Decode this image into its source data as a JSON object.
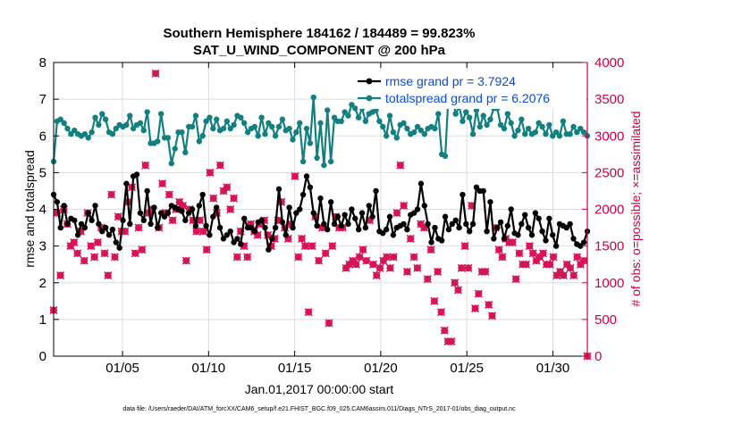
{
  "chart_data": {
    "type": "line",
    "title_line1": "Southern Hemisphere 184162 / 184489 = 99.823%",
    "title_line2": "SAT_U_WIND_COMPONENT @ 200 hPa",
    "xlabel": "Jan.01,2017 00:00:00 start",
    "ylabel_left": "rmse and totalspread",
    "ylabel_right": "# of obs: o=possible; ×=assimilated",
    "footnote": "data file: /Users/raeder/DAI/ATM_forcXX/CAM6_setup/f.e21.FHIST_BGC.f09_025.CAM6assim.011/Diags_NTrS_2017-01/obs_diag_output.nc",
    "xlim": [
      1,
      32
    ],
    "ylim_left": [
      0,
      8
    ],
    "ylim_right": [
      0,
      4000
    ],
    "x_tick_labels": [
      "01/05",
      "01/10",
      "01/15",
      "01/20",
      "01/25",
      "01/30"
    ],
    "x_tick_values": [
      5,
      10,
      15,
      20,
      25,
      30
    ],
    "y_tick_labels_left": [
      "0",
      "1",
      "2",
      "3",
      "4",
      "5",
      "6",
      "7",
      "8"
    ],
    "y_tick_labels_right": [
      "0",
      "500",
      "1000",
      "1500",
      "2000",
      "2500",
      "3000",
      "3500",
      "4000"
    ],
    "grid": true,
    "legend_position": "top-right",
    "colors": {
      "rmse": "#000000",
      "totalspread": "#128080",
      "obs": "#d6145a",
      "right_axis": "#c8004c",
      "legend_text": "#0a4bd9"
    },
    "series": [
      {
        "name": "rmse grand pr = 3.7924",
        "axis": "left",
        "values": [
          4.4,
          4.2,
          3.5,
          4.1,
          3.6,
          3.75,
          3.7,
          3.3,
          3.6,
          3.5,
          3.9,
          3.7,
          4.1,
          3.6,
          3.4,
          3.5,
          3.3,
          3.45,
          3.1,
          2.95,
          3.7,
          4.7,
          3.6,
          4.9,
          4.95,
          3.9,
          3.7,
          4.5,
          3.6,
          4.05,
          3.5,
          3.9,
          3.8,
          3.9,
          4.1,
          4.05,
          4.0,
          3.95,
          3.7,
          3.9,
          4.0,
          3.55,
          4.1,
          4.4,
          3.55,
          3.3,
          3.8,
          4.05,
          3.5,
          3.2,
          3.3,
          3.4,
          3.1,
          3.2,
          3.05,
          3.75,
          3.5,
          3.5,
          3.4,
          3.65,
          3.7,
          3.5,
          2.9,
          3.2,
          3.5,
          4.55,
          3.65,
          3.3,
          4.05,
          3.5,
          3.9,
          4.0,
          4.4,
          4.9,
          4.6,
          3.9,
          3.55,
          4.3,
          3.6,
          3.45,
          4.2,
          3.6,
          3.8,
          3.55,
          3.85,
          3.6,
          4.0,
          3.75,
          3.45,
          3.9,
          3.5,
          4.1,
          3.8,
          4.5,
          3.4,
          3.35,
          3.45,
          3.8,
          3.3,
          3.5,
          3.55,
          3.6,
          3.45,
          3.85,
          3.9,
          4.0,
          4.7,
          4.1,
          3.6,
          3.1,
          3.5,
          3.2,
          3.15,
          3.8,
          3.45,
          3.6,
          3.7,
          3.5,
          4.4,
          3.6,
          3.4,
          3.6,
          4.6,
          4.5,
          4.5,
          3.4,
          4.2,
          3.2,
          3.5,
          3.65,
          3.2,
          3.55,
          4.0,
          3.35,
          3.3,
          3.6,
          3.85,
          3.5,
          3.3,
          3.9,
          3.75,
          3.4,
          3.15,
          3.75,
          3.3,
          3.0,
          3.6,
          3.55,
          3.5,
          3.6,
          3.2,
          3.05,
          3.0,
          3.1,
          3.4
        ]
      },
      {
        "name": "totalspread grand pr = 6.2076",
        "axis": "left",
        "values": [
          5.3,
          6.4,
          6.45,
          6.35,
          6.2,
          6.05,
          6.15,
          6.05,
          6.0,
          6.05,
          5.95,
          6.1,
          6.5,
          6.3,
          6.6,
          6.45,
          6.1,
          6.05,
          6.2,
          6.3,
          6.25,
          6.3,
          6.55,
          6.2,
          6.3,
          6.35,
          6.15,
          6.65,
          5.8,
          5.8,
          5.85,
          6.6,
          5.95,
          5.95,
          5.25,
          5.65,
          6.1,
          6.1,
          5.55,
          6.25,
          6.25,
          6.55,
          5.85,
          6.0,
          6.4,
          6.5,
          6.2,
          6.45,
          6.15,
          6.2,
          6.4,
          6.2,
          6.3,
          6.55,
          6.5,
          6.35,
          6.1,
          6.2,
          6.25,
          6.0,
          6.5,
          6.05,
          6.35,
          6.25,
          6.0,
          6.25,
          6.45,
          6.15,
          6.2,
          5.9,
          6.1,
          6.35,
          5.3,
          6.2,
          5.8,
          7.05,
          5.4,
          6.35,
          5.2,
          6.7,
          5.3,
          6.5,
          6.4,
          6.4,
          6.65,
          6.55,
          6.85,
          6.75,
          6.5,
          6.75,
          6.4,
          6.6,
          6.65,
          6.7,
          6.4,
          6.25,
          6.0,
          6.55,
          6.1,
          5.95,
          6.3,
          6.35,
          6.2,
          6.05,
          6.1,
          6.25,
          6.15,
          6.05,
          6.2,
          6.25,
          6.2,
          6.6,
          5.5,
          5.45,
          7.25,
          7.1,
          6.6,
          6.8,
          6.4,
          6.65,
          6.5,
          6.05,
          6.7,
          6.25,
          6.55,
          6.3,
          6.45,
          6.75,
          6.75,
          6.3,
          6.2,
          6.6,
          6.35,
          6.0,
          6.15,
          6.45,
          6.05,
          6.2,
          6.05,
          6.1,
          6.35,
          6.25,
          6.05,
          6.3,
          6.0,
          6.1,
          6.0,
          6.4,
          6.05,
          6.05,
          6.25,
          6.1,
          6.2,
          6.1,
          6.0
        ]
      },
      {
        "name": "possible",
        "axis": "right",
        "marker": "o",
        "note": "possible and assimilated counts are nearly identical; markers overlap",
        "values": [
          625,
          1950,
          1100,
          2000,
          1800,
          1500,
          1550,
          1400,
          1700,
          1300,
          1950,
          1500,
          1350,
          1550,
          1750,
          1400,
          1100,
          2200,
          1350,
          1900,
          1700,
          1700,
          2100,
          2300,
          1400,
          1750,
          1450,
          2600,
          1950,
          2000,
          3850,
          1750,
          2350,
          1950,
          2200,
          1850,
          2000,
          2100,
          2050,
          1300,
          2000,
          1850,
          1700,
          1850,
          1700,
          1450,
          2500,
          2150,
          1950,
          2600,
          2250,
          2300,
          2000,
          2150,
          1350,
          1700,
          1500,
          1350,
          1800,
          1700,
          1650,
          1800,
          1850,
          1650,
          1500,
          1600,
          1850,
          2100,
          1750,
          1600,
          1800,
          2450,
          1350,
          1600,
          1500,
          600,
          1500,
          1900,
          1300,
          1750,
          1400,
          450,
          1500,
          1900,
          1750,
          1750,
          1200,
          1250,
          1300,
          1250,
          1350,
          1450,
          1300,
          1850,
          1250,
          1100,
          1200,
          1300,
          1350,
          1200,
          1350,
          1950,
          2600,
          2050,
          1150,
          1600,
          1350,
          1200,
          1800,
          1750,
          1050,
          1450,
          750,
          1150,
          600,
          350,
          200,
          200,
          1000,
          900,
          1200,
          1500,
          1200,
          2050,
          650,
          850,
          1150,
          1150,
          700,
          550,
          1750,
          1450,
          1350,
          1600,
          1550,
          1550,
          1050,
          1400,
          1250,
          1250,
          1500,
          1400,
          1300,
          1350,
          1400,
          1250,
          1250,
          1350,
          1100,
          1150,
          1100,
          1250,
          1200,
          1100,
          1350,
          1250,
          1300,
          0
        ]
      }
    ],
    "legend": [
      {
        "label": "rmse grand pr = 3.7924",
        "color": "#000000"
      },
      {
        "label": "totalspread grand pr = 6.2076",
        "color": "#128080"
      }
    ]
  }
}
